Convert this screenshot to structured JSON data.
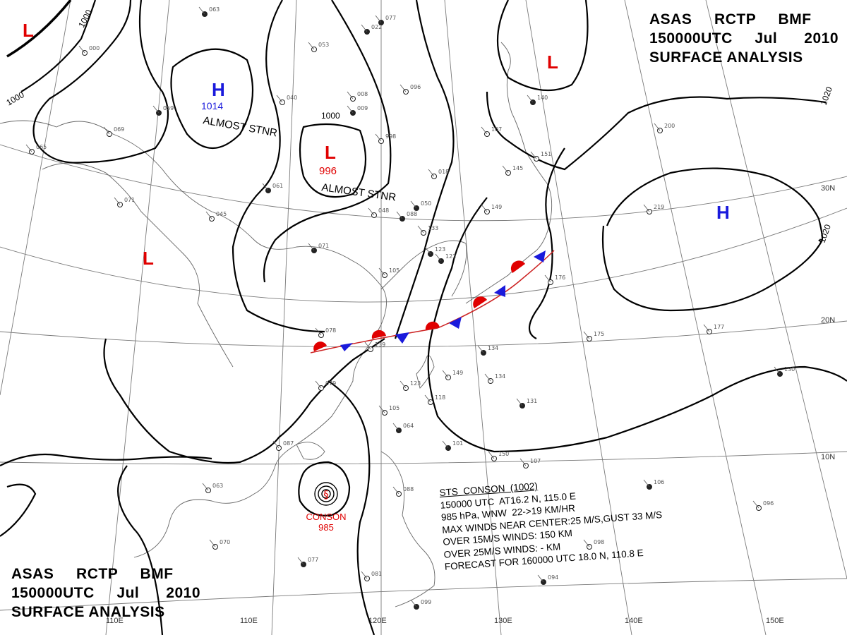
{
  "title": {
    "line1": [
      "ASAS",
      "RCTP",
      "BMF"
    ],
    "line2": [
      "150000UTC",
      "Jul",
      "2010"
    ],
    "line3": "SURFACE ANALYSIS"
  },
  "pressure_centers": [
    {
      "type": "L",
      "color": "#e00000"
    },
    {
      "type": "H",
      "value": "1014",
      "color": "#1a1adc",
      "note": "ALMOST STNR"
    },
    {
      "type": "L",
      "value": "996",
      "color": "#e00000",
      "note": "ALMOST STNR"
    },
    {
      "type": "L",
      "color": "#e00000"
    },
    {
      "type": "L",
      "color": "#e00000"
    },
    {
      "type": "H",
      "color": "#1a1adc"
    }
  ],
  "isobar_labels": [
    "1000",
    "1000",
    "1000",
    "1020",
    "1020"
  ],
  "latitude_labels": [
    "30N",
    "20N",
    "10N"
  ],
  "longitude_labels": [
    "110E",
    "120E",
    "130E",
    "140E",
    "150E"
  ],
  "cyclone": {
    "name": "CONSON",
    "pressure": "985",
    "info_lines": [
      "STS  CONSON  (1002)",
      "150000 UTC  AT16.2 N, 115.0 E",
      "985 hPa, WNW  22->19 KM/HR",
      "MAX WINDS NEAR CENTER:25 M/S,GUST 33 M/S",
      "OVER 15M/S WINDS: 150 KM",
      "OVER 25M/S WINDS: - KM",
      "FORECAST FOR 160000 UTC 18.0 N, 110.8 E"
    ]
  },
  "colors": {
    "low": "#e00000",
    "high": "#1a1adc",
    "warm_front": "#e00000",
    "cold_front": "#1a1adc"
  },
  "station_values": [
    "077",
    "000",
    "053",
    "022",
    "096",
    "069",
    "059",
    "040",
    "008",
    "009",
    "045",
    "071",
    "061",
    "998",
    "018",
    "050",
    "107",
    "151",
    "140",
    "065",
    "145",
    "063",
    "149",
    "200",
    "088",
    "133",
    "048",
    "123",
    "105",
    "123",
    "064",
    "087",
    "079",
    "071",
    "078",
    "139",
    "134",
    "149",
    "134",
    "131",
    "175",
    "177",
    "130",
    "219",
    "176",
    "101",
    "150",
    "107",
    "106",
    "118",
    "096",
    "099",
    "081",
    "098",
    "094",
    "063",
    "070",
    "077",
    "088",
    "105",
    "123"
  ]
}
